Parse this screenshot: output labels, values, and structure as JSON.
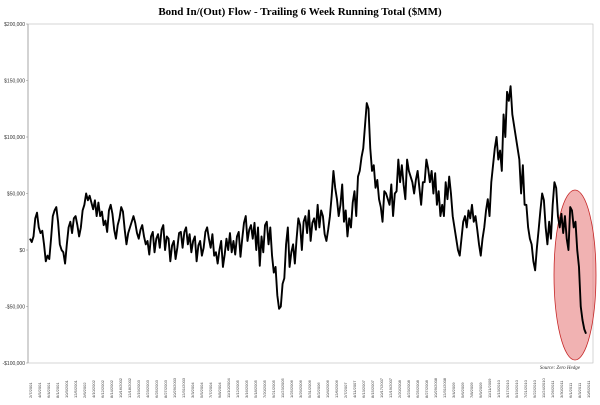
{
  "chart_data": {
    "type": "line",
    "title": "Bond In/(Out) Flow - Trailing 6 Week Running Total ($MM)",
    "source": "Source: Zero Hedge",
    "ylim": [
      -100000,
      200000
    ],
    "yticks": [
      {
        "value": 200000,
        "label": "$200,000"
      },
      {
        "value": 150000,
        "label": "$150,000"
      },
      {
        "value": 100000,
        "label": "$100,000"
      },
      {
        "value": 50000,
        "label": "$50,000"
      },
      {
        "value": 0,
        "label": "$0"
      },
      {
        "value": -50000,
        "label": "-$50,000"
      },
      {
        "value": -100000,
        "label": "-$100,000"
      }
    ],
    "xtick_labels": [
      "2/7/2001",
      "4/5/2001",
      "6/4/2001",
      "8/1/2001",
      "10/3/2001",
      "12/5/2001",
      "2/6/2002",
      "4/10/2002",
      "6/12/2002",
      "8/14/2002",
      "10/16/2002",
      "12/18/2002",
      "2/19/2003",
      "4/23/2003",
      "6/25/2003",
      "8/27/2003",
      "10/29/2003",
      "12/31/2003",
      "3/3/2004",
      "5/5/2004",
      "7/7/2004",
      "9/8/2004",
      "11/10/2004",
      "1/12/2005",
      "3/16/2005",
      "5/18/2005",
      "7/20/2005",
      "9/21/2005",
      "11/23/2005",
      "1/25/2006",
      "3/29/2006",
      "5/31/2006",
      "8/2/2006",
      "10/4/2006",
      "12/6/2006",
      "2/7/2007",
      "4/11/2007",
      "6/13/2007",
      "8/15/2007",
      "10/17/2007",
      "12/19/2007",
      "2/20/2008",
      "4/23/2008",
      "6/25/2008",
      "8/27/2008",
      "10/29/2008",
      "12/31/2008",
      "3/4/2009",
      "5/6/2009",
      "7/8/2009",
      "9/9/2009",
      "11/11/2009",
      "1/13/2010",
      "3/17/2010",
      "5/19/2010",
      "7/21/2010",
      "9/22/2010",
      "11/24/2010",
      "1/26/2011",
      "3/30/2011",
      "6/1/2011",
      "8/3/2011",
      "10/5/2011"
    ],
    "series": [
      {
        "color": "#000000",
        "values": [
          10000,
          7000,
          12000,
          28000,
          33000,
          20000,
          15000,
          17000,
          5000,
          -10000,
          -5000,
          -8000,
          10000,
          30000,
          35000,
          38000,
          25000,
          5000,
          0,
          -2000,
          -12000,
          5000,
          20000,
          25000,
          15000,
          28000,
          30000,
          22000,
          12000,
          20000,
          35000,
          40000,
          50000,
          44000,
          48000,
          42000,
          36000,
          44000,
          30000,
          42000,
          30000,
          34000,
          22000,
          26000,
          16000,
          35000,
          40000,
          32000,
          18000,
          10000,
          22000,
          28000,
          38000,
          34000,
          18000,
          5000,
          15000,
          20000,
          25000,
          30000,
          24000,
          15000,
          10000,
          18000,
          22000,
          12000,
          5000,
          8000,
          -4000,
          12000,
          16000,
          -2000,
          10000,
          14000,
          2000,
          18000,
          22000,
          0,
          12000,
          10000,
          -10000,
          4000,
          8000,
          -8000,
          2000,
          15000,
          16000,
          2000,
          16000,
          20000,
          5000,
          14000,
          -2000,
          8000,
          12000,
          -10000,
          4000,
          8000,
          -5000,
          2000,
          16000,
          20000,
          10000,
          2000,
          14000,
          -5000,
          -2000,
          -12000,
          0,
          8000,
          -15000,
          -4000,
          10000,
          0,
          15000,
          -2000,
          8000,
          -4000,
          12000,
          16000,
          -6000,
          10000,
          24000,
          30000,
          8000,
          18000,
          22000,
          10000,
          24000,
          0,
          20000,
          -14000,
          12000,
          -2000,
          22000,
          25000,
          5000,
          20000,
          -5000,
          -20000,
          -15000,
          -40000,
          -52000,
          -50000,
          -30000,
          -25000,
          5000,
          20000,
          -15000,
          -2000,
          5000,
          -12000,
          10000,
          28000,
          22000,
          0,
          25000,
          30000,
          15000,
          35000,
          8000,
          24000,
          28000,
          18000,
          40000,
          20000,
          35000,
          30000,
          14000,
          8000,
          18000,
          30000,
          48000,
          70000,
          55000,
          45000,
          30000,
          40000,
          58000,
          25000,
          35000,
          12000,
          28000,
          20000,
          42000,
          52000,
          30000,
          65000,
          70000,
          82000,
          90000,
          110000,
          130000,
          125000,
          90000,
          70000,
          75000,
          55000,
          62000,
          45000,
          38000,
          25000,
          52000,
          50000,
          45000,
          40000,
          58000,
          30000,
          50000,
          52000,
          80000,
          60000,
          75000,
          58000,
          45000,
          80000,
          70000,
          65000,
          60000,
          50000,
          62000,
          70000,
          55000,
          40000,
          60000,
          60000,
          80000,
          72000,
          60000,
          70000,
          50000,
          68000,
          40000,
          52000,
          30000,
          40000,
          30000,
          60000,
          45000,
          65000,
          50000,
          30000,
          20000,
          10000,
          0,
          -5000,
          10000,
          25000,
          30000,
          20000,
          35000,
          28000,
          40000,
          25000,
          30000,
          18000,
          5000,
          -5000,
          10000,
          20000,
          35000,
          45000,
          30000,
          60000,
          75000,
          90000,
          100000,
          80000,
          88000,
          70000,
          120000,
          100000,
          140000,
          132000,
          145000,
          120000,
          110000,
          100000,
          90000,
          80000,
          50000,
          75000,
          40000,
          40000,
          20000,
          10000,
          5000,
          -10000,
          -18000,
          2000,
          18000,
          35000,
          50000,
          44000,
          20000,
          5000,
          25000,
          10000,
          40000,
          60000,
          55000,
          30000,
          20000,
          32000,
          15000,
          30000,
          10000,
          0,
          38000,
          35000,
          20000,
          25000,
          0,
          -15000,
          -50000,
          -62000,
          -70000,
          -74000
        ]
      }
    ],
    "annotation": {
      "shape": "ellipse",
      "color": "#d9484e",
      "note": "highlight of recent outflows"
    }
  }
}
